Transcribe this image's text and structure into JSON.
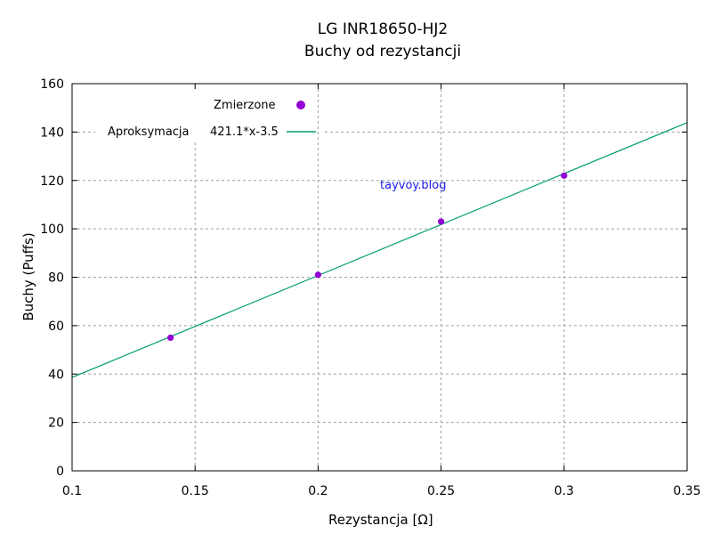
{
  "chart_data": {
    "type": "scatter",
    "title": "LG INR18650-HJ2",
    "subtitle": "Buchy od rezystancji",
    "xlabel": "Rezystancja [Ω]",
    "ylabel": "Buchy (Puffs)",
    "xlim": [
      0.1,
      0.35
    ],
    "ylim": [
      0,
      160
    ],
    "x_ticks": [
      0.1,
      0.15,
      0.2,
      0.25,
      0.3,
      0.35
    ],
    "x_tick_labels": [
      "0.1",
      "0.15",
      "0.2",
      "0.25",
      "0.3",
      "0.35"
    ],
    "y_ticks": [
      0,
      20,
      40,
      60,
      80,
      100,
      120,
      140,
      160
    ],
    "y_tick_labels": [
      "0",
      "20",
      "40",
      "60",
      "80",
      "100",
      "120",
      "140",
      "160"
    ],
    "grid": true,
    "legend_position": "top-left",
    "series": [
      {
        "name": "Zmierzone",
        "kind": "points",
        "color": "#9400d3",
        "x": [
          0.14,
          0.2,
          0.25,
          0.3
        ],
        "y": [
          55,
          81,
          103,
          122
        ]
      },
      {
        "name": "Aproksymacja",
        "formula": "421.1*x-3.5",
        "kind": "line",
        "color": "#009e73",
        "slope": 421.1,
        "intercept": -3.5
      }
    ],
    "annotation": "tayvoy.blog"
  }
}
